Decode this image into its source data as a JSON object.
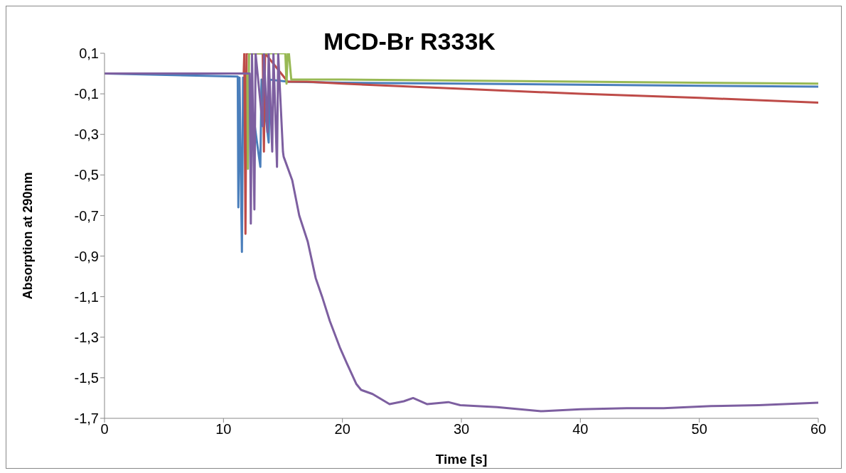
{
  "chart_data": {
    "type": "line",
    "title": "MCD-Br R333K",
    "xlabel": "Time [s]",
    "ylabel": "Absorption at 290nm",
    "xlim": [
      0,
      60
    ],
    "xticks": [
      0,
      10,
      20,
      30,
      40,
      50,
      60
    ],
    "ylim": [
      -1.7,
      0.1
    ],
    "yticks": [
      {
        "value": -1.7,
        "label": "-1,7"
      },
      {
        "value": -1.5,
        "label": "-1,5"
      },
      {
        "value": -1.3,
        "label": "-1,3"
      },
      {
        "value": -1.1,
        "label": "-1,1"
      },
      {
        "value": -0.9,
        "label": "-0,9"
      },
      {
        "value": -0.7,
        "label": "-0,7"
      },
      {
        "value": -0.5,
        "label": "-0,5"
      },
      {
        "value": -0.3,
        "label": "-0,3"
      },
      {
        "value": -0.1,
        "label": "-0,1"
      },
      {
        "value": 0.1,
        "label": "0,1"
      }
    ],
    "marker": "none",
    "line_style": "solid",
    "series": [
      {
        "color": "#4a7ebb",
        "x": [
          0,
          11.2,
          11.25,
          11.35,
          11.55,
          11.65,
          12.0,
          12.1,
          13.1,
          13.2,
          13.8,
          13.9,
          15.4,
          20,
          30,
          40,
          50,
          60
        ],
        "values": [
          0.0,
          -0.015,
          -0.66,
          -0.02,
          -0.88,
          -0.02,
          -0.03,
          -0.03,
          -0.46,
          -0.03,
          -0.34,
          -0.03,
          -0.04,
          -0.045,
          -0.05,
          -0.055,
          -0.06,
          -0.065
        ]
      },
      {
        "color": "#be4b48",
        "x": [
          0,
          11.7,
          11.75,
          11.85,
          11.95,
          12.1,
          13.3,
          13.4,
          13.5,
          15.4,
          17,
          20,
          30,
          40,
          50,
          60
        ],
        "values": [
          0.0,
          0.0,
          0.1,
          -0.79,
          0.1,
          0.1,
          0.1,
          -0.385,
          0.1,
          -0.04,
          -0.04,
          -0.05,
          -0.075,
          -0.1,
          -0.12,
          -0.143
        ]
      },
      {
        "color": "#98b954",
        "x": [
          0,
          12.0,
          12.05,
          12.15,
          15.2,
          15.3,
          15.4,
          15.5,
          15.7,
          20,
          30,
          40,
          50,
          60
        ],
        "values": [
          0.0,
          0.0,
          -0.47,
          0.1,
          0.1,
          -0.05,
          0.1,
          0.1,
          -0.03,
          -0.03,
          -0.035,
          -0.04,
          -0.045,
          -0.05
        ]
      },
      {
        "color": "#7d5fa0",
        "x": [
          0,
          12.2,
          12.3,
          12.4,
          12.6,
          12.7,
          13.3,
          13.4,
          13.7,
          13.8,
          14.1,
          14.2,
          14.5,
          14.6,
          15.0,
          15.06,
          15.78,
          16.37,
          17.09,
          17.75,
          18.29,
          18.94,
          19.78,
          20.38,
          21.16,
          21.57,
          22.53,
          23.96,
          25.16,
          25.94,
          27.13,
          28.9,
          29.9,
          31.3,
          33,
          36.7,
          40,
          43.9,
          47,
          51,
          55,
          60
        ],
        "values": [
          0.0,
          0.0,
          -0.74,
          0.1,
          -0.67,
          0.1,
          -0.26,
          0.1,
          -0.29,
          0.1,
          -0.385,
          0.1,
          -0.46,
          0.1,
          -0.385,
          -0.41,
          -0.526,
          -0.7,
          -0.83,
          -1.008,
          -1.1,
          -1.22,
          -1.35,
          -1.43,
          -1.53,
          -1.56,
          -1.58,
          -1.63,
          -1.616,
          -1.6,
          -1.63,
          -1.62,
          -1.635,
          -1.64,
          -1.645,
          -1.665,
          -1.655,
          -1.65,
          -1.65,
          -1.64,
          -1.635,
          -1.623
        ]
      }
    ]
  }
}
